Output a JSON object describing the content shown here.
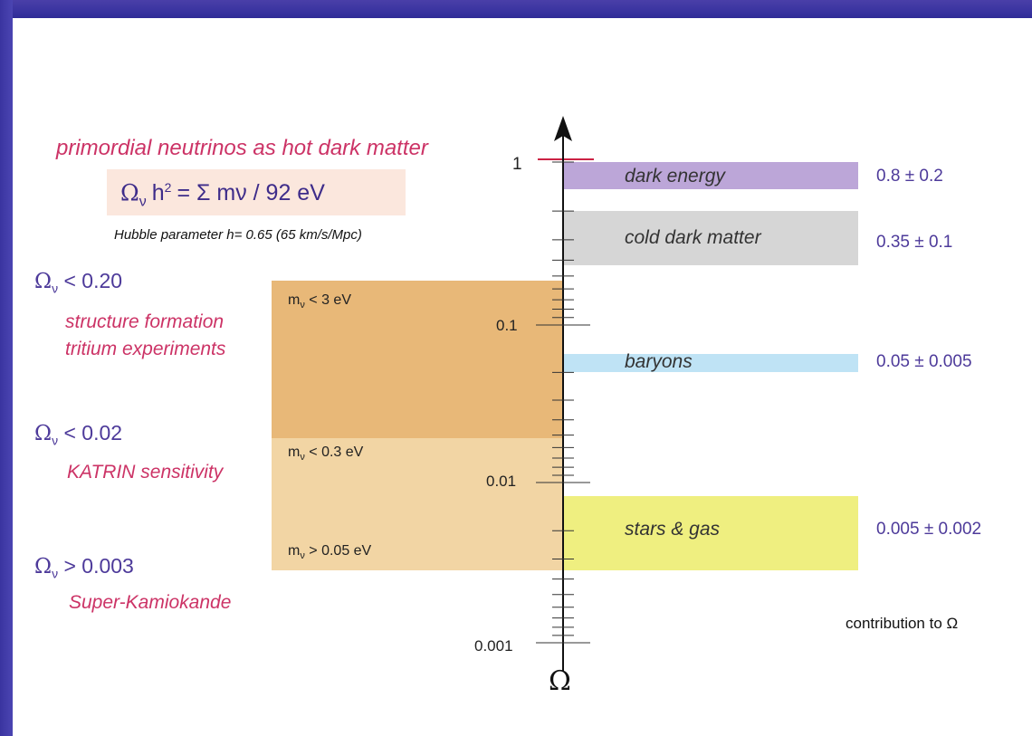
{
  "header": {
    "title": "primordial neutrinos as hot dark matter",
    "formula": "Ωνh² = Σ mν / 92 eV",
    "formula_lhs": "Ω",
    "formula_sub": "ν",
    "formula_h": "h",
    "formula_sup": "2",
    "formula_rhs": "= Σ mν / 92 eV",
    "hubble": "Hubble parameter h= 0.65  (65 km/s/Mpc)"
  },
  "limits": [
    {
      "omega": "Ω",
      "sub": "ν",
      "rel": "< 0.20",
      "text": "Ων < 0.20",
      "source1": "structure formation",
      "source2": "tritium experiments"
    },
    {
      "omega": "Ω",
      "sub": "ν",
      "rel": "< 0.02",
      "text": "Ων < 0.02",
      "source1": "KATRIN sensitivity",
      "source2": ""
    },
    {
      "omega": "Ω",
      "sub": "ν",
      "rel": "> 0.003",
      "text": "Ων > 0.003",
      "source1": "Super-Kamiokande",
      "source2": ""
    }
  ],
  "mass_bands": [
    {
      "m": "m",
      "sub": "ν",
      "label": "< 3 eV",
      "text": "mν < 3 eV",
      "color": "#e8b878"
    },
    {
      "m": "m",
      "sub": "ν",
      "label": "< 0.3 eV",
      "text": "mν < 0.3 eV",
      "color": "#f2d5a4"
    },
    {
      "m": "m",
      "sub": "ν",
      "label": "> 0.05 eV",
      "text": "mν > 0.05 eV",
      "color": "#f2d5a4"
    }
  ],
  "axis": {
    "symbol": "Ω",
    "ticks": [
      "1",
      "0.1",
      "0.01",
      "0.001"
    ],
    "caption": "contribution to Ω",
    "scale": "log"
  },
  "components": [
    {
      "name": "dark energy",
      "value": "0.8 ± 0.2",
      "color": "#bca6d8"
    },
    {
      "name": "cold dark matter",
      "value": "0.35 ± 0.1",
      "color": "#d6d6d6"
    },
    {
      "name": "baryons",
      "value": "0.05 ± 0.005",
      "color": "#bfe3f5"
    },
    {
      "name": "stars & gas",
      "value": "0.005 ± 0.002",
      "color": "#efef80"
    }
  ],
  "colors": {
    "red_text": "#cc3366",
    "purple_text": "#4d3a9a",
    "formula_bg": "#fbe7dd",
    "marker_red": "#cc2244"
  }
}
